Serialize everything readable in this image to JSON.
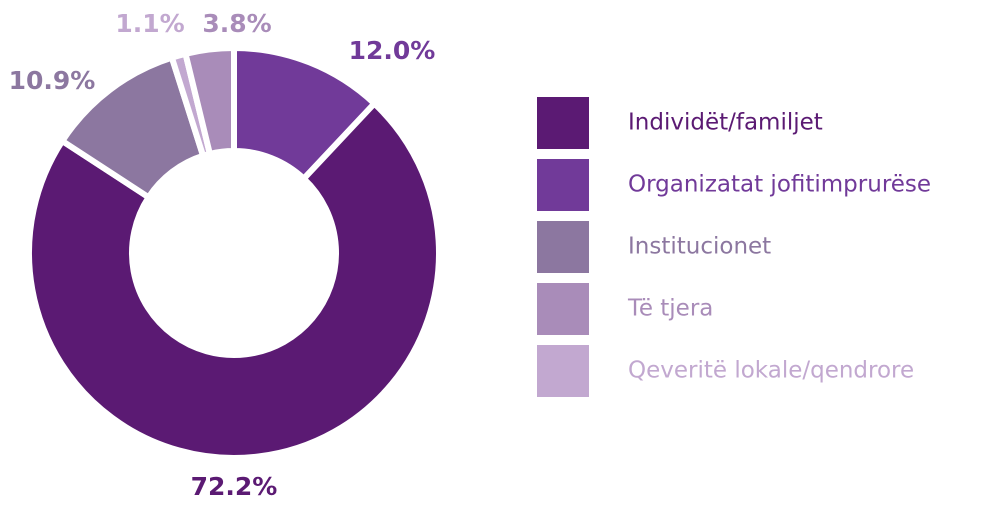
{
  "chart_data": {
    "type": "donut",
    "categories": [
      "Individët/familjet",
      "Organizatat jofitimprurëse",
      "Institucionet",
      "Të tjera",
      "Qeveritë lokale/qendrore"
    ],
    "values": [
      72.2,
      12.0,
      10.9,
      3.8,
      1.1
    ],
    "value_labels": [
      "72.2%",
      "12.0%",
      "10.9%",
      "3.8%",
      "1.1%"
    ],
    "colors": [
      "#5b1a73",
      "#713a99",
      "#8c77a0",
      "#a98cb9",
      "#c2a8d0"
    ],
    "legend": "right"
  }
}
